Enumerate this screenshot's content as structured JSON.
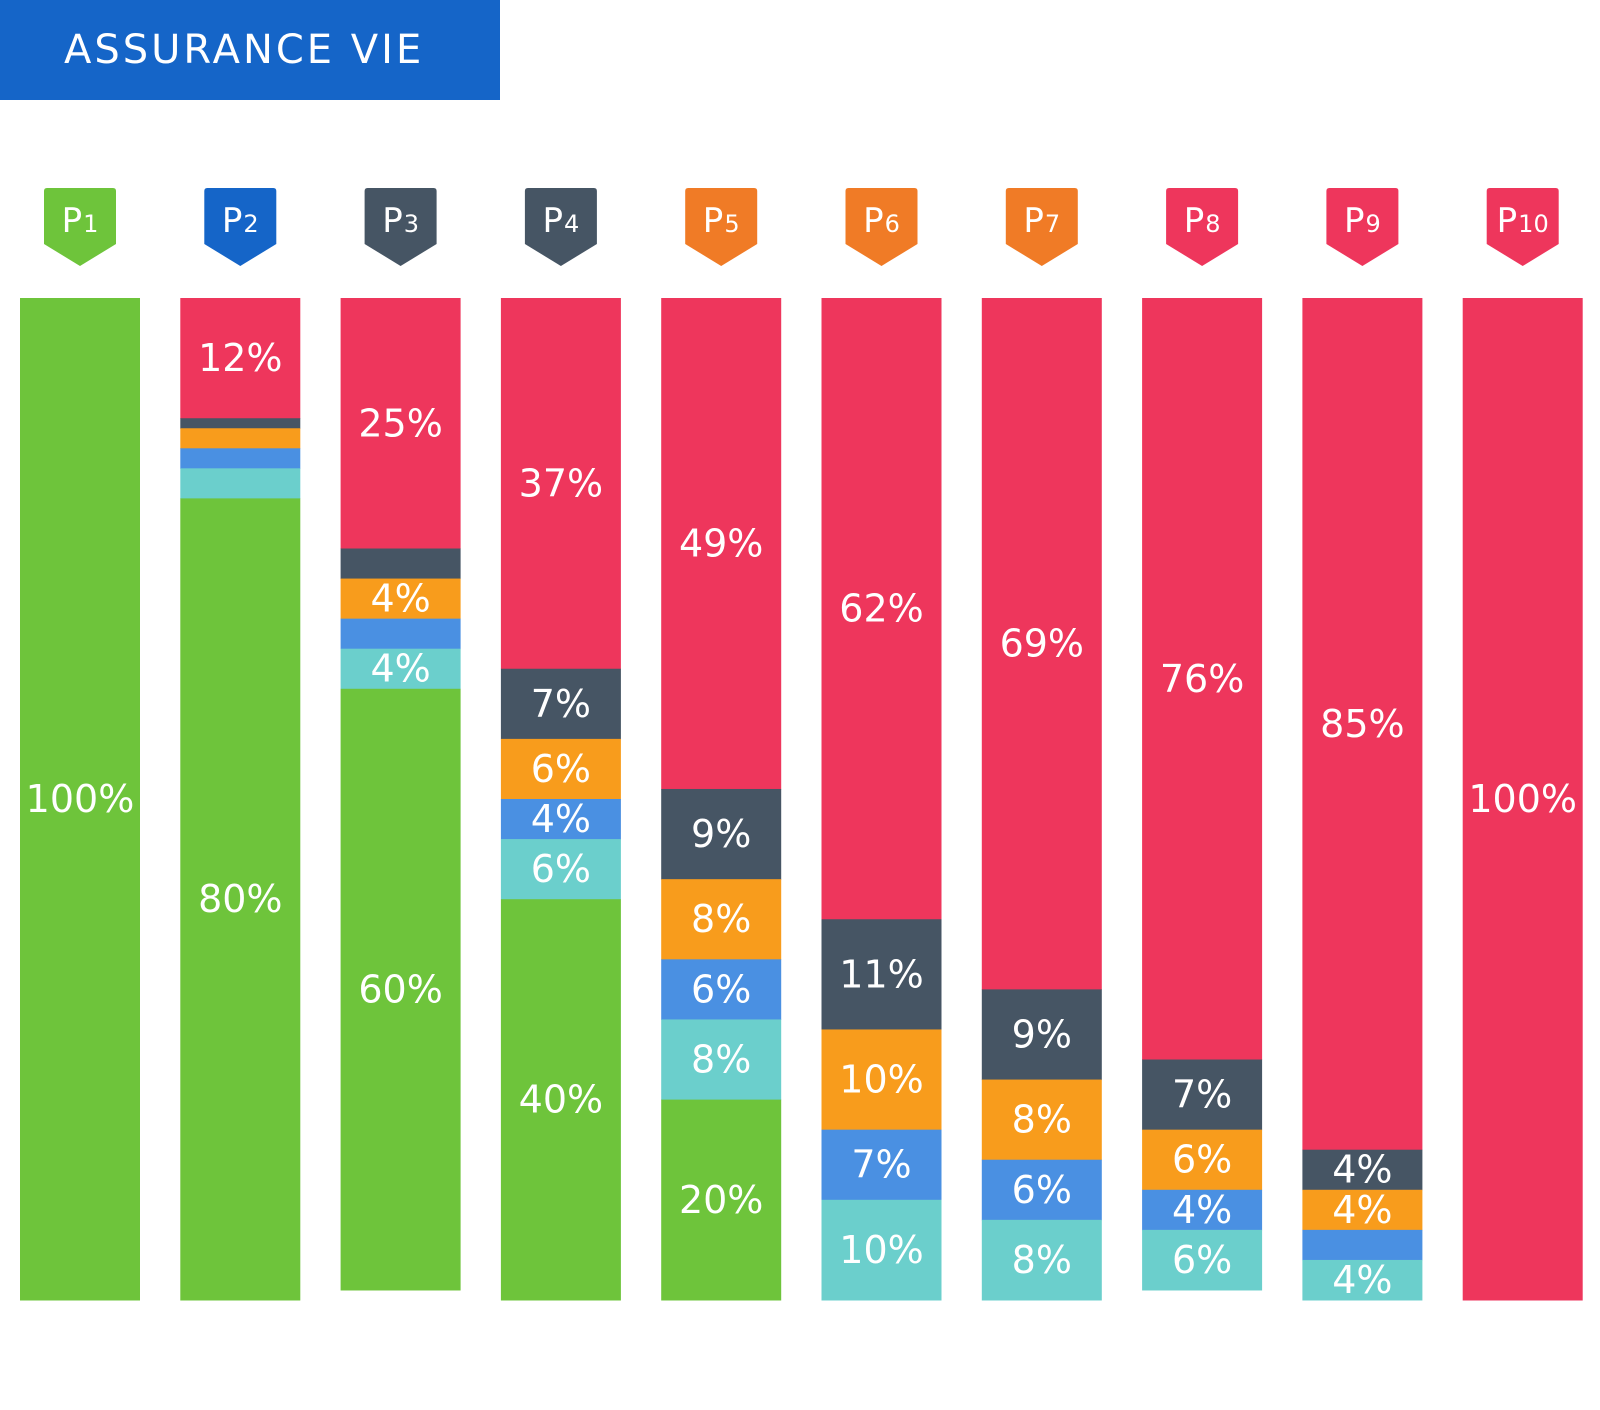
{
  "title": "ASSURANCE VIE",
  "colors": {
    "banner": "#1565c8",
    "segments": {
      "red": "#ee365c",
      "dark": "#465564",
      "orange": "#f89c1c",
      "blue": "#4a90e2",
      "teal": "#6bcfcc",
      "green": "#6ec43b"
    }
  },
  "chart_data": {
    "type": "bar",
    "stacked": true,
    "normalized_to": 100,
    "categories": [
      {
        "prefix": "P",
        "num": "1",
        "badge_color": "#6ec43b"
      },
      {
        "prefix": "P",
        "num": "2",
        "badge_color": "#1565c8"
      },
      {
        "prefix": "P",
        "num": "3",
        "badge_color": "#465564"
      },
      {
        "prefix": "P",
        "num": "4",
        "badge_color": "#465564"
      },
      {
        "prefix": "P",
        "num": "5",
        "badge_color": "#f07b26"
      },
      {
        "prefix": "P",
        "num": "6",
        "badge_color": "#f07b26"
      },
      {
        "prefix": "P",
        "num": "7",
        "badge_color": "#f07b26"
      },
      {
        "prefix": "P",
        "num": "8",
        "badge_color": "#ee365c"
      },
      {
        "prefix": "P",
        "num": "9",
        "badge_color": "#ee365c"
      },
      {
        "prefix": "P",
        "num": "10",
        "badge_color": "#ee365c"
      }
    ],
    "series": [
      {
        "name": "red",
        "values": [
          0,
          12,
          25,
          37,
          49,
          62,
          69,
          76,
          85,
          100
        ],
        "labels": [
          "",
          "12%",
          "25%",
          "37%",
          "49%",
          "62%",
          "69%",
          "76%",
          "85%",
          "100%"
        ]
      },
      {
        "name": "dark",
        "values": [
          0,
          1,
          3,
          7,
          9,
          11,
          9,
          7,
          4,
          0
        ],
        "labels": [
          "",
          "",
          "",
          "7%",
          "9%",
          "11%",
          "9%",
          "7%",
          "4%",
          ""
        ]
      },
      {
        "name": "orange",
        "values": [
          0,
          2,
          4,
          6,
          8,
          10,
          8,
          6,
          4,
          0
        ],
        "labels": [
          "",
          "",
          "4%",
          "6%",
          "8%",
          "10%",
          "8%",
          "6%",
          "4%",
          ""
        ]
      },
      {
        "name": "blue",
        "values": [
          0,
          2,
          3,
          4,
          6,
          7,
          6,
          4,
          3,
          0
        ],
        "labels": [
          "",
          "",
          "",
          "4%",
          "6%",
          "7%",
          "6%",
          "4%",
          "",
          ""
        ]
      },
      {
        "name": "teal",
        "values": [
          0,
          3,
          4,
          6,
          8,
          10,
          8,
          6,
          4,
          0
        ],
        "labels": [
          "",
          "",
          "4%",
          "6%",
          "8%",
          "10%",
          "8%",
          "6%",
          "4%",
          ""
        ]
      },
      {
        "name": "green",
        "values": [
          100,
          80,
          60,
          40,
          20,
          0,
          0,
          0,
          0,
          0
        ],
        "labels": [
          "100%",
          "80%",
          "60%",
          "40%",
          "20%",
          "",
          "",
          "",
          "",
          ""
        ]
      }
    ]
  }
}
